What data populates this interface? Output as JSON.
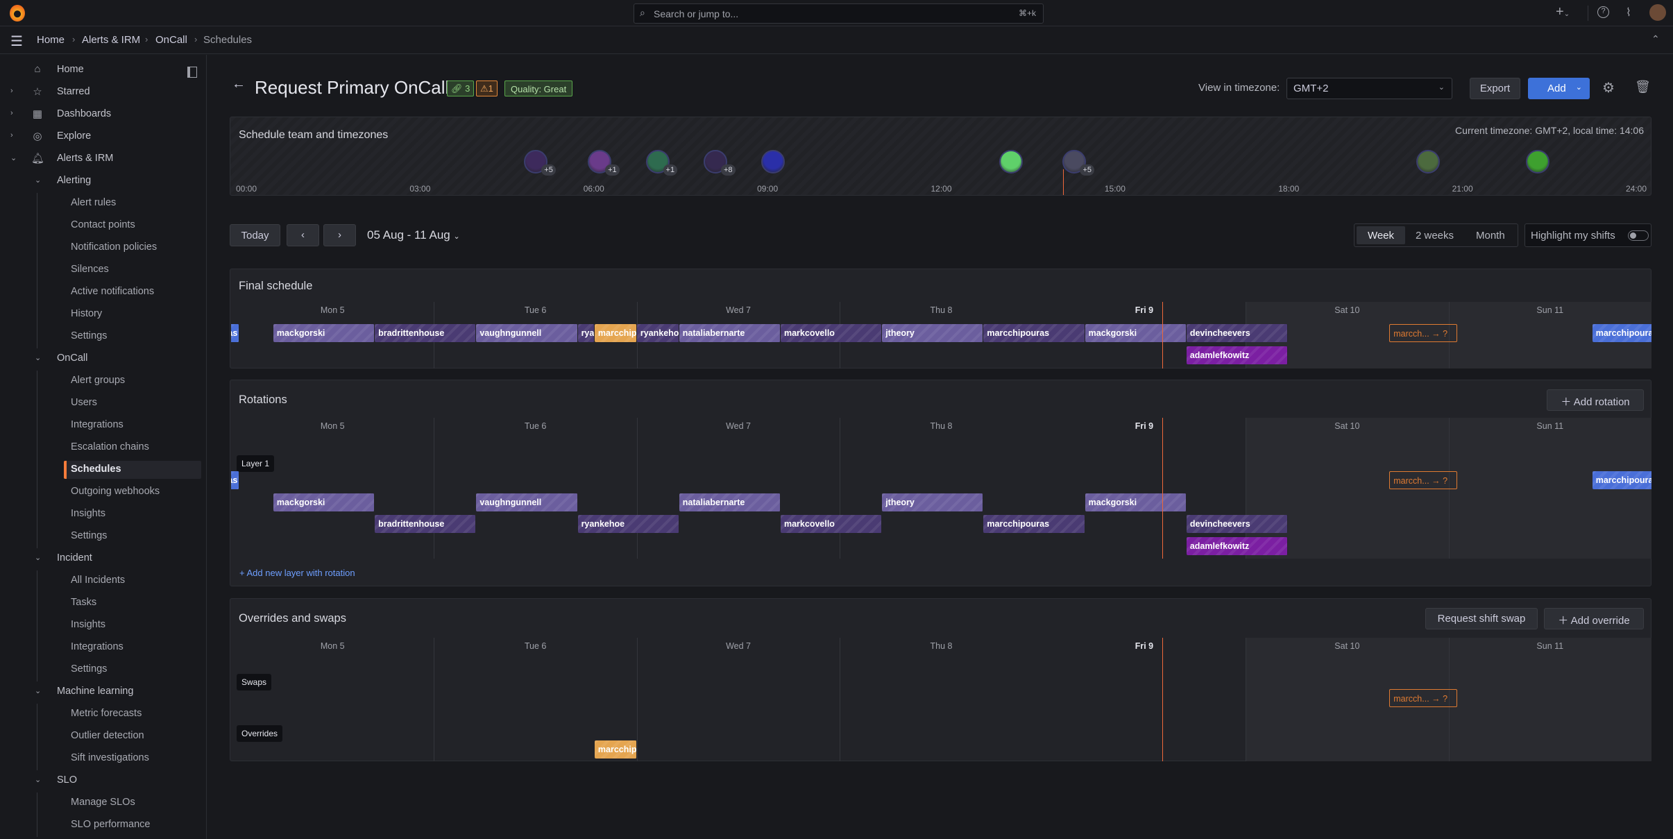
{
  "topbar": {
    "search_placeholder": "Search or jump to...",
    "shortcut": "⌘+k",
    "icons": [
      "grafana-logo",
      "plus-icon",
      "help-icon",
      "rss-icon",
      "user-avatar"
    ]
  },
  "breadcrumb": [
    "Home",
    "Alerts & IRM",
    "OnCall",
    "Schedules"
  ],
  "sidebar": {
    "items": [
      {
        "label": "Home",
        "level": 0,
        "icon": "⌂"
      },
      {
        "label": "Starred",
        "level": 0,
        "icon": "☆",
        "chev": "›"
      },
      {
        "label": "Dashboards",
        "level": 0,
        "icon": "▦",
        "chev": "›"
      },
      {
        "label": "Explore",
        "level": 0,
        "icon": "◎",
        "chev": "›"
      },
      {
        "label": "Alerts & IRM",
        "level": 0,
        "icon": "🔔︎",
        "chev": "⌄"
      },
      {
        "label": "Alerting",
        "level": 1,
        "chev": "⌄"
      },
      {
        "label": "Alert rules",
        "level": 2
      },
      {
        "label": "Contact points",
        "level": 2
      },
      {
        "label": "Notification policies",
        "level": 2
      },
      {
        "label": "Silences",
        "level": 2
      },
      {
        "label": "Active notifications",
        "level": 2
      },
      {
        "label": "History",
        "level": 2
      },
      {
        "label": "Settings",
        "level": 2
      },
      {
        "label": "OnCall",
        "level": 1,
        "chev": "⌄"
      },
      {
        "label": "Alert groups",
        "level": 2
      },
      {
        "label": "Users",
        "level": 2
      },
      {
        "label": "Integrations",
        "level": 2
      },
      {
        "label": "Escalation chains",
        "level": 2
      },
      {
        "label": "Schedules",
        "level": 2,
        "active": true
      },
      {
        "label": "Outgoing webhooks",
        "level": 2
      },
      {
        "label": "Insights",
        "level": 2
      },
      {
        "label": "Settings",
        "level": 2
      },
      {
        "label": "Incident",
        "level": 1,
        "chev": "⌄"
      },
      {
        "label": "All Incidents",
        "level": 2
      },
      {
        "label": "Tasks",
        "level": 2
      },
      {
        "label": "Insights",
        "level": 2
      },
      {
        "label": "Integrations",
        "level": 2
      },
      {
        "label": "Settings",
        "level": 2
      },
      {
        "label": "Machine learning",
        "level": 1,
        "chev": "⌄"
      },
      {
        "label": "Metric forecasts",
        "level": 2
      },
      {
        "label": "Outlier detection",
        "level": 2
      },
      {
        "label": "Sift investigations",
        "level": 2
      },
      {
        "label": "SLO",
        "level": 1,
        "chev": "⌄"
      },
      {
        "label": "Manage SLOs",
        "level": 2
      },
      {
        "label": "SLO performance",
        "level": 2
      }
    ]
  },
  "header": {
    "title": "Request Primary OnCall",
    "links_badge": "3",
    "warnings_badge": "1",
    "quality_badge": "Quality: Great",
    "timezone_label": "View in timezone:",
    "timezone_value": "GMT+2",
    "export_label": "Export",
    "add_label": "Add"
  },
  "team_panel": {
    "title": "Schedule team and timezones",
    "current": "Current timezone: GMT+2, local time: 14:06",
    "now_hour": 14.1,
    "hours": [
      "00:00",
      "03:00",
      "06:00",
      "09:00",
      "12:00",
      "15:00",
      "18:00",
      "21:00",
      "24:00"
    ],
    "avatars": [
      {
        "hour": 5,
        "extra": "+5",
        "color": "#3d2a5c"
      },
      {
        "hour": 6.1,
        "extra": "+1",
        "color": "#6a3b8a"
      },
      {
        "hour": 7.1,
        "extra": "+1",
        "color": "#2e6b4f"
      },
      {
        "hour": 8.1,
        "extra": "+8",
        "color": "#35294f"
      },
      {
        "hour": 9.1,
        "extra": "",
        "color": "#2a2fa8"
      },
      {
        "hour": 13.2,
        "extra": "",
        "color": "#5fd06a"
      },
      {
        "hour": 14.3,
        "extra": "+5",
        "color": "#4a4a60"
      },
      {
        "hour": 20.4,
        "extra": "",
        "color": "#4c6a3e"
      },
      {
        "hour": 22.3,
        "extra": "",
        "color": "#3ea02f"
      }
    ]
  },
  "toolbar": {
    "today": "Today",
    "prev": "‹",
    "next": "›",
    "range": "05 Aug - 11 Aug",
    "views": [
      "Week",
      "2 weeks",
      "Month"
    ],
    "selected_view": "Week",
    "highlight_label": "Highlight my shifts",
    "highlight_on": false
  },
  "days": [
    "Mon 5",
    "Tue 6",
    "Wed 7",
    "Thu 8",
    "Fri 9",
    "Sat 10",
    "Sun 11"
  ],
  "today_index": 4,
  "now": "08-09 14:06",
  "colors": {
    "rot_a": "#6b5e9e",
    "rot_b": "#4a3b73",
    "layer_blue": "#4a6fd8",
    "magenta": "#7b1fa2",
    "override": "#e5a550",
    "swap": "#e07b32",
    "now": "#f0683a",
    "add": "#3d71d9"
  },
  "final_schedule": {
    "title": "Final schedule",
    "rows": [
      [
        {
          "user": "marcchipouras",
          "start": "08-04 17:00",
          "end": "08-05 01:00",
          "color": "layer_blue"
        },
        {
          "user": "mackgorski",
          "start": "08-05 05:00",
          "end": "08-05 17:00",
          "color": "rot_a"
        },
        {
          "user": "bradrittenhouse",
          "start": "08-05 17:00",
          "end": "08-06 05:00",
          "color": "rot_b"
        },
        {
          "user": "vaughngunnell",
          "start": "08-06 05:00",
          "end": "08-06 17:00",
          "color": "rot_a"
        },
        {
          "user": "ryankehoe",
          "start": "08-06 17:00",
          "end": "08-06 19:00",
          "color": "rot_b"
        },
        {
          "user": "marcchipouras",
          "start": "08-06 19:00",
          "end": "08-07 00:00",
          "color": "override"
        },
        {
          "user": "ryankehoe",
          "start": "08-07 00:00",
          "end": "08-07 05:00",
          "color": "rot_b"
        },
        {
          "user": "nataliabernarte",
          "start": "08-07 05:00",
          "end": "08-07 17:00",
          "color": "rot_a"
        },
        {
          "user": "markcovello",
          "start": "08-07 17:00",
          "end": "08-08 05:00",
          "color": "rot_b"
        },
        {
          "user": "jtheory",
          "start": "08-08 05:00",
          "end": "08-08 17:00",
          "color": "rot_a"
        },
        {
          "user": "marcchipouras",
          "start": "08-08 17:00",
          "end": "08-09 05:00",
          "color": "rot_b"
        },
        {
          "user": "mackgorski",
          "start": "08-09 05:00",
          "end": "08-09 17:00",
          "color": "rot_a"
        },
        {
          "user": "devincheevers",
          "start": "08-09 17:00",
          "end": "08-10 05:00",
          "color": "rot_b"
        },
        {
          "user": "marcch... → ?",
          "start": "08-10 17:00",
          "end": "08-11 01:00",
          "color": "swap",
          "swap": true
        },
        {
          "user": "marcchipouras",
          "start": "08-11 17:00",
          "end": "08-12 01:00",
          "color": "layer_blue"
        }
      ],
      [
        {
          "user": "adamlefkowitz",
          "start": "08-09 17:00",
          "end": "08-10 05:00",
          "color": "magenta"
        }
      ]
    ]
  },
  "rotations": {
    "title": "Rotations",
    "add_label": "Add rotation",
    "layer_label": "Layer 1",
    "add_layer": "+ Add new layer with rotation",
    "rows": [
      [
        {
          "user": "marcchipouras",
          "start": "08-04 17:00",
          "end": "08-05 01:00",
          "color": "layer_blue"
        },
        {
          "user": "marcch... → ?",
          "start": "08-10 17:00",
          "end": "08-11 01:00",
          "color": "swap",
          "swap": true
        },
        {
          "user": "marcchipouras",
          "start": "08-11 17:00",
          "end": "08-12 01:00",
          "color": "layer_blue"
        }
      ],
      [
        {
          "user": "mackgorski",
          "start": "08-05 05:00",
          "end": "08-05 17:00",
          "color": "rot_a"
        },
        {
          "user": "vaughngunnell",
          "start": "08-06 05:00",
          "end": "08-06 17:00",
          "color": "rot_a"
        },
        {
          "user": "nataliabernarte",
          "start": "08-07 05:00",
          "end": "08-07 17:00",
          "color": "rot_a"
        },
        {
          "user": "jtheory",
          "start": "08-08 05:00",
          "end": "08-08 17:00",
          "color": "rot_a"
        },
        {
          "user": "mackgorski",
          "start": "08-09 05:00",
          "end": "08-09 17:00",
          "color": "rot_a"
        }
      ],
      [
        {
          "user": "bradrittenhouse",
          "start": "08-05 17:00",
          "end": "08-06 05:00",
          "color": "rot_b"
        },
        {
          "user": "ryankehoe",
          "start": "08-06 17:00",
          "end": "08-07 05:00",
          "color": "rot_b"
        },
        {
          "user": "markcovello",
          "start": "08-07 17:00",
          "end": "08-08 05:00",
          "color": "rot_b"
        },
        {
          "user": "marcchipouras",
          "start": "08-08 17:00",
          "end": "08-09 05:00",
          "color": "rot_b"
        },
        {
          "user": "devincheevers",
          "start": "08-09 17:00",
          "end": "08-10 05:00",
          "color": "rot_b"
        }
      ],
      [
        {
          "user": "adamlefkowitz",
          "start": "08-09 17:00",
          "end": "08-10 05:00",
          "color": "magenta"
        }
      ]
    ]
  },
  "overrides": {
    "title": "Overrides and swaps",
    "swap_btn": "Request shift swap",
    "add_btn": "Add override",
    "swaps_label": "Swaps",
    "overrides_label": "Overrides",
    "rows": [
      [
        {
          "user": "marcch... → ?",
          "start": "08-10 17:00",
          "end": "08-11 01:00",
          "color": "swap",
          "swap": true
        }
      ],
      [
        {
          "user": "marcchipouras",
          "start": "08-06 19:00",
          "end": "08-07 00:00",
          "color": "override"
        }
      ]
    ]
  }
}
